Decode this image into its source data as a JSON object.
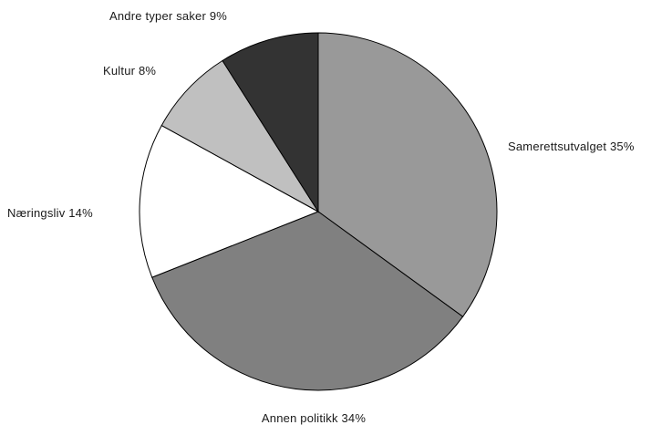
{
  "chart_data": {
    "type": "pie",
    "title": "",
    "start": "12 o'clock",
    "direction": "clockwise",
    "slices": [
      {
        "label": "Samerettsutvalget 35%",
        "category": "Samerettsutvalget",
        "value": 35,
        "color": "#999999"
      },
      {
        "label": "Annen politikk 34%",
        "category": "Annen politikk",
        "value": 34,
        "color": "#808080"
      },
      {
        "label": "Næringsliv 14%",
        "category": "Næringsliv",
        "value": 14,
        "color": "#ffffff"
      },
      {
        "label": "Kultur 8%",
        "category": "Kultur",
        "value": 8,
        "color": "#c0c0c0"
      },
      {
        "label": "Andre typer saker 9%",
        "category": "Andre typer saker",
        "value": 9,
        "color": "#333333"
      }
    ]
  }
}
